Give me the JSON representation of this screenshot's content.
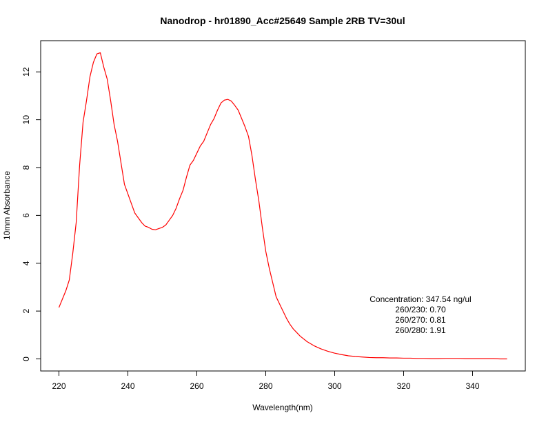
{
  "chart_data": {
    "type": "line",
    "title": "Nanodrop - hr01890_Acc#25649 Sample 2RB  TV=30ul",
    "xlabel": "Wavelength(nm)",
    "ylabel": "10mm Absorbance",
    "xlim": [
      220,
      350
    ],
    "ylim": [
      0,
      12.8
    ],
    "x_ticks": [
      220,
      240,
      260,
      280,
      300,
      320,
      340
    ],
    "y_ticks": [
      0,
      2,
      4,
      6,
      8,
      10,
      12
    ],
    "grid": false,
    "series": [
      {
        "color": "#ff0000",
        "x": [
          220,
          221,
          222,
          223,
          224,
          225,
          226,
          227,
          228,
          229,
          230,
          231,
          232,
          233,
          234,
          235,
          236,
          237,
          238,
          239,
          240,
          241,
          242,
          243,
          244,
          245,
          246,
          247,
          248,
          249,
          250,
          251,
          252,
          253,
          254,
          255,
          256,
          257,
          258,
          259,
          260,
          261,
          262,
          263,
          264,
          265,
          266,
          267,
          268,
          269,
          270,
          271,
          272,
          273,
          274,
          275,
          276,
          277,
          278,
          279,
          280,
          281,
          282,
          283,
          284,
          285,
          286,
          287,
          288,
          289,
          290,
          292,
          294,
          296,
          298,
          300,
          302,
          304,
          306,
          308,
          310,
          312,
          314,
          316,
          318,
          320,
          322,
          324,
          326,
          328,
          330,
          332,
          334,
          336,
          338,
          340,
          342,
          344,
          346,
          348,
          350
        ],
        "y": [
          2.15,
          2.5,
          2.85,
          3.3,
          4.4,
          5.7,
          8.1,
          9.9,
          10.8,
          11.8,
          12.4,
          12.75,
          12.8,
          12.2,
          11.7,
          10.8,
          9.8,
          9.1,
          8.2,
          7.3,
          6.9,
          6.5,
          6.1,
          5.9,
          5.7,
          5.55,
          5.5,
          5.42,
          5.4,
          5.45,
          5.5,
          5.6,
          5.8,
          6.0,
          6.3,
          6.7,
          7.05,
          7.6,
          8.1,
          8.3,
          8.6,
          8.9,
          9.1,
          9.45,
          9.8,
          10.05,
          10.4,
          10.7,
          10.82,
          10.85,
          10.78,
          10.6,
          10.4,
          10.05,
          9.7,
          9.3,
          8.5,
          7.5,
          6.6,
          5.5,
          4.5,
          3.8,
          3.2,
          2.6,
          2.3,
          2.0,
          1.7,
          1.45,
          1.25,
          1.1,
          0.95,
          0.72,
          0.55,
          0.42,
          0.32,
          0.24,
          0.18,
          0.13,
          0.1,
          0.08,
          0.06,
          0.05,
          0.05,
          0.04,
          0.04,
          0.03,
          0.03,
          0.02,
          0.02,
          0.01,
          0.01,
          0.02,
          0.02,
          0.02,
          0.01,
          0.01,
          0.01,
          0.01,
          0.01,
          0.0,
          0.0
        ]
      }
    ],
    "annotations": [
      "Concentration: 347.54 ng/ul",
      "260/230: 0.70",
      "260/270: 0.81",
      "260/280: 1.91"
    ]
  }
}
